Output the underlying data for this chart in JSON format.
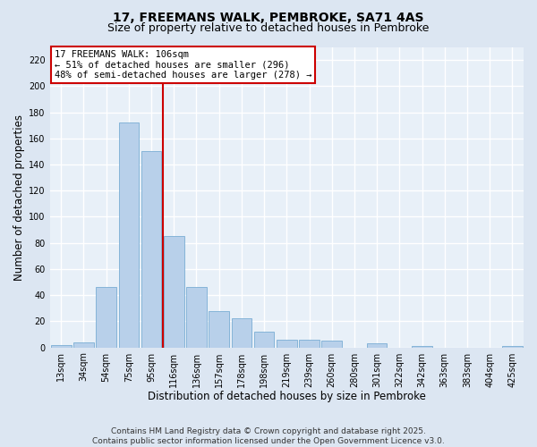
{
  "title": "17, FREEMANS WALK, PEMBROKE, SA71 4AS",
  "subtitle": "Size of property relative to detached houses in Pembroke",
  "xlabel": "Distribution of detached houses by size in Pembroke",
  "ylabel": "Number of detached properties",
  "categories": [
    "13sqm",
    "34sqm",
    "54sqm",
    "75sqm",
    "95sqm",
    "116sqm",
    "136sqm",
    "157sqm",
    "178sqm",
    "198sqm",
    "219sqm",
    "239sqm",
    "260sqm",
    "280sqm",
    "301sqm",
    "322sqm",
    "342sqm",
    "363sqm",
    "383sqm",
    "404sqm",
    "425sqm"
  ],
  "values": [
    2,
    4,
    46,
    172,
    150,
    85,
    46,
    28,
    22,
    12,
    6,
    6,
    5,
    0,
    3,
    0,
    1,
    0,
    0,
    0,
    1
  ],
  "bar_color": "#b8d0ea",
  "bar_edge_color": "#7aadd4",
  "vline_x": 5.0,
  "vline_color": "#cc0000",
  "annotation_line1": "17 FREEMANS WALK: 106sqm",
  "annotation_line2": "← 51% of detached houses are smaller (296)",
  "annotation_line3": "48% of semi-detached houses are larger (278) →",
  "annotation_box_color": "#ffffff",
  "annotation_box_edge": "#cc0000",
  "ylim": [
    0,
    230
  ],
  "yticks": [
    0,
    20,
    40,
    60,
    80,
    100,
    120,
    140,
    160,
    180,
    200,
    220
  ],
  "footer": "Contains HM Land Registry data © Crown copyright and database right 2025.\nContains public sector information licensed under the Open Government Licence v3.0.",
  "bg_color": "#dce6f2",
  "plot_bg_color": "#e8f0f8",
  "grid_color": "#ffffff",
  "title_fontsize": 10,
  "subtitle_fontsize": 9,
  "axis_label_fontsize": 8.5,
  "tick_fontsize": 7,
  "footer_fontsize": 6.5
}
